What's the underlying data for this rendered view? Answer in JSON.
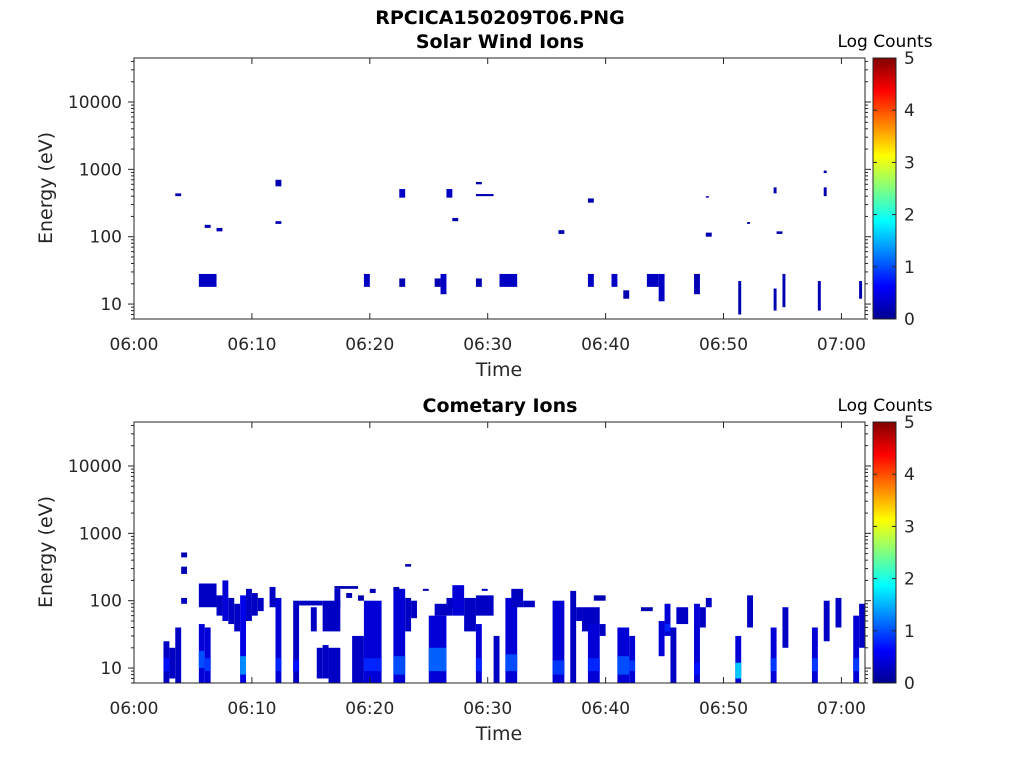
{
  "figure": {
    "title": "RPCICA150209T06.PNG"
  },
  "colorbar": {
    "colors": [
      "#00008f",
      "#0000ff",
      "#0080ff",
      "#00ffff",
      "#80ff80",
      "#ffff00",
      "#ff8000",
      "#ff0000",
      "#800000"
    ]
  },
  "chart_data": [
    {
      "type": "heatmap",
      "title": "Solar Wind Ions",
      "xlabel": "Time",
      "ylabel": "Energy (eV)",
      "xlim": [
        "06:00",
        "07:02"
      ],
      "x_ticks": [
        "06:00",
        "06:10",
        "06:20",
        "06:30",
        "06:40",
        "06:50",
        "07:00"
      ],
      "ylim": [
        6,
        45000
      ],
      "y_scale": "log",
      "y_ticks": [
        "10",
        "100",
        "1000",
        "10000"
      ],
      "colorbar": {
        "label": "Log Counts",
        "range": [
          0,
          5
        ],
        "ticks": [
          "0",
          "1",
          "2",
          "3",
          "4",
          "5"
        ]
      },
      "cells": [
        {
          "t0": "06:03:30",
          "t1": "06:04:00",
          "e0": 400,
          "e1": 440,
          "v": 0.2
        },
        {
          "t0": "06:06:00",
          "t1": "06:06:30",
          "e0": 135,
          "e1": 150,
          "v": 0.2
        },
        {
          "t0": "06:07:00",
          "t1": "06:07:30",
          "e0": 120,
          "e1": 135,
          "v": 0.2
        },
        {
          "t0": "06:05:30",
          "t1": "06:07:00",
          "e0": 18,
          "e1": 28,
          "v": 0.3
        },
        {
          "t0": "06:12:00",
          "t1": "06:12:30",
          "e0": 560,
          "e1": 700,
          "v": 0.2
        },
        {
          "t0": "06:12:00",
          "t1": "06:12:30",
          "e0": 155,
          "e1": 170,
          "v": 0.2
        },
        {
          "t0": "06:19:30",
          "t1": "06:20:00",
          "e0": 18,
          "e1": 28,
          "v": 0.3
        },
        {
          "t0": "06:22:30",
          "t1": "06:23:00",
          "e0": 380,
          "e1": 510,
          "v": 0.3
        },
        {
          "t0": "06:22:30",
          "t1": "06:23:00",
          "e0": 18,
          "e1": 24,
          "v": 0.2
        },
        {
          "t0": "06:25:30",
          "t1": "06:26:00",
          "e0": 18,
          "e1": 24,
          "v": 0.2
        },
        {
          "t0": "06:26:00",
          "t1": "06:26:30",
          "e0": 14,
          "e1": 28,
          "v": 0.3
        },
        {
          "t0": "06:26:30",
          "t1": "06:27:00",
          "e0": 380,
          "e1": 510,
          "v": 0.3
        },
        {
          "t0": "06:27:00",
          "t1": "06:27:30",
          "e0": 170,
          "e1": 190,
          "v": 0.2
        },
        {
          "t0": "06:29:00",
          "t1": "06:29:30",
          "e0": 600,
          "e1": 650,
          "v": 0.2
        },
        {
          "t0": "06:29:00",
          "t1": "06:30:30",
          "e0": 400,
          "e1": 430,
          "v": 0.2
        },
        {
          "t0": "06:29:00",
          "t1": "06:29:30",
          "e0": 18,
          "e1": 24,
          "v": 0.2
        },
        {
          "t0": "06:31:00",
          "t1": "06:32:30",
          "e0": 18,
          "e1": 28,
          "v": 0.3
        },
        {
          "t0": "06:36:00",
          "t1": "06:36:30",
          "e0": 110,
          "e1": 125,
          "v": 0.2
        },
        {
          "t0": "06:38:30",
          "t1": "06:39:00",
          "e0": 320,
          "e1": 370,
          "v": 0.2
        },
        {
          "t0": "06:38:30",
          "t1": "06:39:00",
          "e0": 18,
          "e1": 28,
          "v": 0.3
        },
        {
          "t0": "06:40:30",
          "t1": "06:41:00",
          "e0": 18,
          "e1": 28,
          "v": 0.3
        },
        {
          "t0": "06:41:30",
          "t1": "06:42:00",
          "e0": 12,
          "e1": 16,
          "v": 0.2
        },
        {
          "t0": "06:43:30",
          "t1": "06:44:30",
          "e0": 18,
          "e1": 28,
          "v": 0.3
        },
        {
          "t0": "06:44:30",
          "t1": "06:45:00",
          "e0": 11,
          "e1": 28,
          "v": 0.3
        },
        {
          "t0": "06:47:30",
          "t1": "06:48:00",
          "e0": 14,
          "e1": 28,
          "v": 0.2
        },
        {
          "t0": "06:48:30",
          "t1": "06:48:45",
          "e0": 380,
          "e1": 400,
          "v": 0.2
        },
        {
          "t0": "06:48:30",
          "t1": "06:49:00",
          "e0": 100,
          "e1": 115,
          "v": 0.2
        },
        {
          "t0": "06:51:15",
          "t1": "06:51:30",
          "e0": 7,
          "e1": 22,
          "v": 0.2
        },
        {
          "t0": "06:52:00",
          "t1": "06:52:15",
          "e0": 155,
          "e1": 165,
          "v": 0.2
        },
        {
          "t0": "06:54:15",
          "t1": "06:54:30",
          "e0": 440,
          "e1": 540,
          "v": 0.2
        },
        {
          "t0": "06:54:30",
          "t1": "06:55:00",
          "e0": 110,
          "e1": 120,
          "v": 0.2
        },
        {
          "t0": "06:54:15",
          "t1": "06:54:30",
          "e0": 8,
          "e1": 17,
          "v": 0.2
        },
        {
          "t0": "06:55:00",
          "t1": "06:55:15",
          "e0": 9,
          "e1": 28,
          "v": 0.2
        },
        {
          "t0": "06:58:00",
          "t1": "06:58:15",
          "e0": 8,
          "e1": 22,
          "v": 0.2
        },
        {
          "t0": "06:58:30",
          "t1": "06:58:45",
          "e0": 880,
          "e1": 960,
          "v": 0.2
        },
        {
          "t0": "06:58:30",
          "t1": "06:58:45",
          "e0": 400,
          "e1": 540,
          "v": 0.2
        },
        {
          "t0": "07:01:30",
          "t1": "07:01:45",
          "e0": 12,
          "e1": 22,
          "v": 0.2
        }
      ]
    },
    {
      "type": "heatmap",
      "title": "Cometary Ions",
      "xlabel": "Time",
      "ylabel": "Energy (eV)",
      "xlim": [
        "06:00",
        "07:02"
      ],
      "x_ticks": [
        "06:00",
        "06:10",
        "06:20",
        "06:30",
        "06:40",
        "06:50",
        "07:00"
      ],
      "ylim": [
        6,
        45000
      ],
      "y_scale": "log",
      "y_ticks": [
        "10",
        "100",
        "1000",
        "10000"
      ],
      "colorbar": {
        "label": "Log Counts",
        "range": [
          0,
          5
        ],
        "ticks": [
          "0",
          "1",
          "2",
          "3",
          "4",
          "5"
        ]
      },
      "columns": [
        {
          "t0": "06:02:30",
          "t1": "06:03:00",
          "e0": 6,
          "e1": 25,
          "v": 0.3,
          "core": [
            9,
            14
          ],
          "cv": 0.7
        },
        {
          "t0": "06:03:00",
          "t1": "06:03:30",
          "e0": 7,
          "e1": 20,
          "v": 0.3
        },
        {
          "t0": "06:03:30",
          "t1": "06:04:00",
          "e0": 6,
          "e1": 40,
          "v": 0.3
        },
        {
          "t0": "06:04:00",
          "t1": "06:04:30",
          "e0": 90,
          "e1": 110,
          "v": 0.3
        },
        {
          "t0": "06:04:00",
          "t1": "06:04:30",
          "e0": 250,
          "e1": 320,
          "v": 0.2
        },
        {
          "t0": "06:04:00",
          "t1": "06:04:30",
          "e0": 440,
          "e1": 520,
          "v": 0.2
        },
        {
          "t0": "06:05:30",
          "t1": "06:06:00",
          "e0": 6,
          "e1": 45,
          "v": 0.4,
          "core": [
            10,
            18
          ],
          "cv": 1.0
        },
        {
          "t0": "06:06:00",
          "t1": "06:06:30",
          "e0": 6,
          "e1": 40,
          "v": 0.4,
          "core": [
            9,
            14
          ],
          "cv": 0.9
        },
        {
          "t0": "06:05:30",
          "t1": "06:07:00",
          "e0": 80,
          "e1": 180,
          "v": 0.3
        },
        {
          "t0": "06:07:00",
          "t1": "06:07:30",
          "e0": 60,
          "e1": 120,
          "v": 0.3
        },
        {
          "t0": "06:07:30",
          "t1": "06:08:00",
          "e0": 50,
          "e1": 200,
          "v": 0.4
        },
        {
          "t0": "06:08:00",
          "t1": "06:08:30",
          "e0": 45,
          "e1": 110,
          "v": 0.3
        },
        {
          "t0": "06:08:30",
          "t1": "06:09:00",
          "e0": 35,
          "e1": 90,
          "v": 0.3
        },
        {
          "t0": "06:09:00",
          "t1": "06:09:30",
          "e0": 6,
          "e1": 120,
          "v": 0.5,
          "core": [
            8,
            15
          ],
          "cv": 1.3
        },
        {
          "t0": "06:09:30",
          "t1": "06:10:00",
          "e0": 50,
          "e1": 150,
          "v": 0.3
        },
        {
          "t0": "06:10:00",
          "t1": "06:10:30",
          "e0": 60,
          "e1": 130,
          "v": 0.3
        },
        {
          "t0": "06:10:30",
          "t1": "06:11:00",
          "e0": 70,
          "e1": 110,
          "v": 0.3
        },
        {
          "t0": "06:11:30",
          "t1": "06:12:00",
          "e0": 80,
          "e1": 160,
          "v": 0.3
        },
        {
          "t0": "06:12:00",
          "t1": "06:12:30",
          "e0": 6,
          "e1": 110,
          "v": 0.4,
          "core": [
            9,
            14
          ],
          "cv": 0.8
        },
        {
          "t0": "06:13:30",
          "t1": "06:14:00",
          "e0": 6,
          "e1": 100,
          "v": 0.3,
          "core": [
            9,
            13
          ],
          "cv": 0.7
        },
        {
          "t0": "06:14:00",
          "t1": "06:16:00",
          "e0": 85,
          "e1": 100,
          "v": 0.3
        },
        {
          "t0": "06:15:00",
          "t1": "06:15:30",
          "e0": 35,
          "e1": 80,
          "v": 0.3
        },
        {
          "t0": "06:15:30",
          "t1": "06:16:00",
          "e0": 7,
          "e1": 20,
          "v": 0.3
        },
        {
          "t0": "06:16:00",
          "t1": "06:17:30",
          "e0": 35,
          "e1": 100,
          "v": 0.3
        },
        {
          "t0": "06:16:00",
          "t1": "06:16:30",
          "e0": 7,
          "e1": 22,
          "v": 0.3
        },
        {
          "t0": "06:16:30",
          "t1": "06:17:30",
          "e0": 6,
          "e1": 20,
          "v": 0.3
        },
        {
          "t0": "06:17:00",
          "t1": "06:17:30",
          "e0": 80,
          "e1": 150,
          "v": 0.3
        },
        {
          "t0": "06:17:00",
          "t1": "06:19:00",
          "e0": 150,
          "e1": 165,
          "v": 0.2
        },
        {
          "t0": "06:18:00",
          "t1": "06:18:30",
          "e0": 110,
          "e1": 130,
          "v": 0.2
        },
        {
          "t0": "06:18:30",
          "t1": "06:19:00",
          "e0": 6,
          "e1": 30,
          "v": 0.3
        },
        {
          "t0": "06:19:00",
          "t1": "06:19:30",
          "e0": 6,
          "e1": 30,
          "v": 0.3
        },
        {
          "t0": "06:19:00",
          "t1": "06:19:30",
          "e0": 100,
          "e1": 120,
          "v": 0.2
        },
        {
          "t0": "06:19:30",
          "t1": "06:21:00",
          "e0": 6,
          "e1": 100,
          "v": 0.4,
          "core": [
            9,
            14
          ],
          "cv": 0.8
        },
        {
          "t0": "06:20:00",
          "t1": "06:20:30",
          "e0": 130,
          "e1": 150,
          "v": 0.2
        },
        {
          "t0": "06:22:00",
          "t1": "06:23:00",
          "e0": 6,
          "e1": 150,
          "v": 0.4,
          "core": [
            8,
            15
          ],
          "cv": 1.0
        },
        {
          "t0": "06:22:00",
          "t1": "06:22:30",
          "e0": 140,
          "e1": 160,
          "v": 0.2
        },
        {
          "t0": "06:23:00",
          "t1": "06:23:30",
          "e0": 35,
          "e1": 110,
          "v": 0.3
        },
        {
          "t0": "06:23:00",
          "t1": "06:23:30",
          "e0": 320,
          "e1": 350,
          "v": 0.2
        },
        {
          "t0": "06:23:30",
          "t1": "06:24:00",
          "e0": 55,
          "e1": 100,
          "v": 0.3
        },
        {
          "t0": "06:24:30",
          "t1": "06:25:00",
          "e0": 140,
          "e1": 150,
          "v": 0.2
        },
        {
          "t0": "06:25:00",
          "t1": "06:26:30",
          "e0": 6,
          "e1": 60,
          "v": 0.4,
          "core": [
            9,
            20
          ],
          "cv": 1.1
        },
        {
          "t0": "06:25:30",
          "t1": "06:27:00",
          "e0": 60,
          "e1": 90,
          "v": 0.3
        },
        {
          "t0": "06:26:30",
          "t1": "06:27:30",
          "e0": 80,
          "e1": 110,
          "v": 0.3
        },
        {
          "t0": "06:27:00",
          "t1": "06:28:00",
          "e0": 60,
          "e1": 170,
          "v": 0.4
        },
        {
          "t0": "06:28:00",
          "t1": "06:29:00",
          "e0": 35,
          "e1": 110,
          "v": 0.3
        },
        {
          "t0": "06:29:00",
          "t1": "06:30:30",
          "e0": 60,
          "e1": 120,
          "v": 0.3
        },
        {
          "t0": "06:29:30",
          "t1": "06:30:00",
          "e0": 140,
          "e1": 150,
          "v": 0.2
        },
        {
          "t0": "06:29:00",
          "t1": "06:29:30",
          "e0": 6,
          "e1": 45,
          "v": 0.4,
          "core": [
            9,
            14
          ],
          "cv": 0.8
        },
        {
          "t0": "06:30:30",
          "t1": "06:31:00",
          "e0": 6,
          "e1": 30,
          "v": 0.3
        },
        {
          "t0": "06:31:30",
          "t1": "06:32:30",
          "e0": 6,
          "e1": 110,
          "v": 0.4,
          "core": [
            9,
            16
          ],
          "cv": 1.0
        },
        {
          "t0": "06:32:00",
          "t1": "06:33:00",
          "e0": 80,
          "e1": 150,
          "v": 0.3
        },
        {
          "t0": "06:33:00",
          "t1": "06:34:00",
          "e0": 80,
          "e1": 100,
          "v": 0.3
        },
        {
          "t0": "06:32:30",
          "t1": "06:33:00",
          "e0": 120,
          "e1": 140,
          "v": 0.2
        },
        {
          "t0": "06:35:30",
          "t1": "06:36:30",
          "e0": 6,
          "e1": 100,
          "v": 0.4,
          "core": [
            8,
            13
          ],
          "cv": 0.9
        },
        {
          "t0": "06:37:00",
          "t1": "06:37:30",
          "e0": 6,
          "e1": 140,
          "v": 0.3
        },
        {
          "t0": "06:37:30",
          "t1": "06:38:00",
          "e0": 50,
          "e1": 80,
          "v": 0.3
        },
        {
          "t0": "06:38:00",
          "t1": "06:39:30",
          "e0": 35,
          "e1": 80,
          "v": 0.3
        },
        {
          "t0": "06:38:30",
          "t1": "06:39:30",
          "e0": 6,
          "e1": 45,
          "v": 0.4,
          "core": [
            9,
            14
          ],
          "cv": 0.8
        },
        {
          "t0": "06:39:00",
          "t1": "06:40:00",
          "e0": 100,
          "e1": 120,
          "v": 0.2
        },
        {
          "t0": "06:39:30",
          "t1": "06:40:00",
          "e0": 30,
          "e1": 45,
          "v": 0.3
        },
        {
          "t0": "06:41:00",
          "t1": "06:42:00",
          "e0": 6,
          "e1": 40,
          "v": 0.4,
          "core": [
            8,
            15
          ],
          "cv": 1.0
        },
        {
          "t0": "06:42:00",
          "t1": "06:42:30",
          "e0": 6,
          "e1": 30,
          "v": 0.4,
          "core": [
            9,
            13
          ],
          "cv": 0.9
        },
        {
          "t0": "06:43:00",
          "t1": "06:44:00",
          "e0": 70,
          "e1": 80,
          "v": 0.2
        },
        {
          "t0": "06:44:30",
          "t1": "06:45:00",
          "e0": 15,
          "e1": 50,
          "v": 0.4
        },
        {
          "t0": "06:45:00",
          "t1": "06:45:30",
          "e0": 30,
          "e1": 90,
          "v": 0.4,
          "core": [
            35,
            45
          ],
          "cv": 0.8
        },
        {
          "t0": "06:45:30",
          "t1": "06:46:00",
          "e0": 6,
          "e1": 40,
          "v": 0.3
        },
        {
          "t0": "06:46:00",
          "t1": "06:47:00",
          "e0": 45,
          "e1": 80,
          "v": 0.3
        },
        {
          "t0": "06:47:30",
          "t1": "06:48:00",
          "e0": 6,
          "e1": 90,
          "v": 0.4,
          "core": [
            8,
            12
          ],
          "cv": 0.7
        },
        {
          "t0": "06:48:00",
          "t1": "06:48:30",
          "e0": 40,
          "e1": 80,
          "v": 0.3
        },
        {
          "t0": "06:48:30",
          "t1": "06:49:00",
          "e0": 80,
          "e1": 110,
          "v": 0.3
        },
        {
          "t0": "06:51:00",
          "t1": "06:51:30",
          "e0": 6,
          "e1": 30,
          "v": 0.4,
          "core": [
            7,
            12
          ],
          "cv": 1.6
        },
        {
          "t0": "06:52:00",
          "t1": "06:52:30",
          "e0": 40,
          "e1": 120,
          "v": 0.3
        },
        {
          "t0": "06:54:00",
          "t1": "06:54:30",
          "e0": 6,
          "e1": 40,
          "v": 0.4,
          "core": [
            9,
            14
          ],
          "cv": 0.9
        },
        {
          "t0": "06:55:00",
          "t1": "06:55:30",
          "e0": 20,
          "e1": 80,
          "v": 0.3
        },
        {
          "t0": "06:57:30",
          "t1": "06:58:00",
          "e0": 6,
          "e1": 40,
          "v": 0.4,
          "core": [
            9,
            14
          ],
          "cv": 0.9
        },
        {
          "t0": "06:58:30",
          "t1": "06:59:00",
          "e0": 25,
          "e1": 100,
          "v": 0.3
        },
        {
          "t0": "06:59:30",
          "t1": "07:00:00",
          "e0": 40,
          "e1": 110,
          "v": 0.3
        },
        {
          "t0": "07:01:00",
          "t1": "07:01:30",
          "e0": 6,
          "e1": 60,
          "v": 0.4,
          "core": [
            9,
            14
          ],
          "cv": 0.9
        },
        {
          "t0": "07:01:30",
          "t1": "07:02:00",
          "e0": 20,
          "e1": 90,
          "v": 0.3
        }
      ]
    }
  ]
}
